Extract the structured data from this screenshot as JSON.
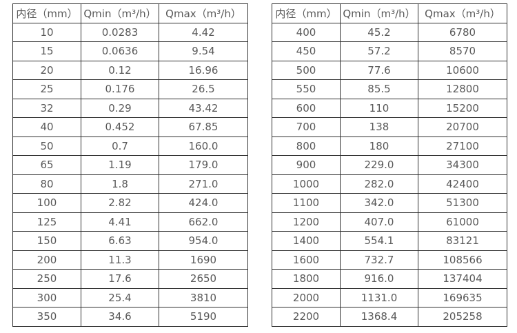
{
  "page": {
    "background": "#ffffff",
    "border_color": "#2e2e2e",
    "text_color": "#595959"
  },
  "tables": [
    {
      "name": "flow-rate-table-small-diameters",
      "headers": [
        "内径（mm）",
        "Qmin（m³/h）",
        "Qmax（m³/h）"
      ],
      "rows": [
        [
          "10",
          "0.0283",
          "4.42"
        ],
        [
          "15",
          "0.0636",
          "9.54"
        ],
        [
          "20",
          "0.12",
          "16.96"
        ],
        [
          "25",
          "0.176",
          "26.5"
        ],
        [
          "32",
          "0.29",
          "43.42"
        ],
        [
          "40",
          "0.452",
          "67.85"
        ],
        [
          "50",
          "0.7",
          "160.0"
        ],
        [
          "65",
          "1.19",
          "179.0"
        ],
        [
          "80",
          "1.8",
          "271.0"
        ],
        [
          "100",
          "2.82",
          "424.0"
        ],
        [
          "125",
          "4.41",
          "662.0"
        ],
        [
          "150",
          "6.63",
          "954.0"
        ],
        [
          "200",
          "11.3",
          "1690"
        ],
        [
          "250",
          "17.6",
          "2650"
        ],
        [
          "300",
          "25.4",
          "3810"
        ],
        [
          "350",
          "34.6",
          "5190"
        ]
      ]
    },
    {
      "name": "flow-rate-table-large-diameters",
      "headers": [
        "内径（mm）",
        "Qmin（m³/h）",
        "Qmax（m³/h）"
      ],
      "rows": [
        [
          "400",
          "45.2",
          "6780"
        ],
        [
          "450",
          "57.2",
          "8570"
        ],
        [
          "500",
          "77.6",
          "10600"
        ],
        [
          "550",
          "85.5",
          "12800"
        ],
        [
          "600",
          "110",
          "15200"
        ],
        [
          "700",
          "138",
          "20700"
        ],
        [
          "800",
          "180",
          "27100"
        ],
        [
          "900",
          "229.0",
          "34300"
        ],
        [
          "1000",
          "282.0",
          "42400"
        ],
        [
          "1100",
          "342.0",
          "51300"
        ],
        [
          "1200",
          "407.0",
          "61000"
        ],
        [
          "1400",
          "554.1",
          "83121"
        ],
        [
          "1600",
          "732.7",
          "108566"
        ],
        [
          "1800",
          "916.0",
          "137404"
        ],
        [
          "2000",
          "1131.0",
          "169635"
        ],
        [
          "2200",
          "1368.4",
          "205258"
        ]
      ]
    }
  ]
}
